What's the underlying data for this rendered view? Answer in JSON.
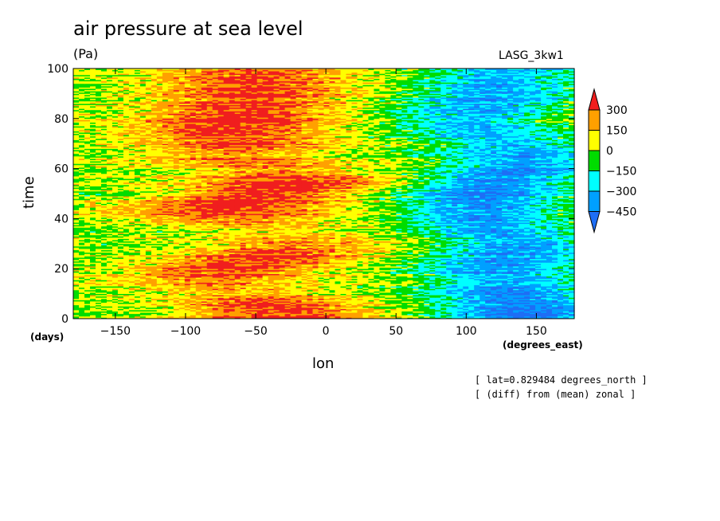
{
  "header": {
    "title": "air pressure at sea level",
    "units": "(Pa)",
    "model": "LASG_3kw1"
  },
  "axes": {
    "xlabel": "lon",
    "xunits": "(degrees_east)",
    "ylabel": "time",
    "yunits": "(days)"
  },
  "notes": {
    "line1": "[ lat=0.829484 degrees_north ]",
    "line2": "[ (diff) from (mean) zonal ]"
  },
  "chart_data": {
    "type": "heatmap",
    "title": "air pressure at sea level",
    "units": "(Pa)",
    "xlabel": "lon",
    "ylabel": "time",
    "xlim": [
      -180,
      177
    ],
    "ylim": [
      0,
      100
    ],
    "x_ticks": [
      -150,
      -100,
      -50,
      0,
      50,
      100,
      150
    ],
    "y_ticks": [
      0,
      20,
      40,
      60,
      80,
      100
    ],
    "colorbar": {
      "levels": [
        -450,
        -300,
        -150,
        0,
        150,
        300
      ],
      "colors": [
        "#1e6ef5",
        "#00a0ff",
        "#00ffff",
        "#00dc00",
        "#ffff00",
        "#ffa000",
        "#f01e1e"
      ]
    },
    "time_rows": [
      {
        "t": 0,
        "peak_lon": -30,
        "amp": 380,
        "trough_lon": 140,
        "trough_amp": -480
      },
      {
        "t": 5,
        "peak_lon": -35,
        "amp": 380,
        "trough_lon": 140,
        "trough_amp": -470
      },
      {
        "t": 10,
        "peak_lon": -60,
        "amp": 220,
        "trough_lon": 130,
        "trough_amp": -420
      },
      {
        "t": 15,
        "peak_lon": -80,
        "amp": 200,
        "trough_lon": 130,
        "trough_amp": -380
      },
      {
        "t": 20,
        "peak_lon": -70,
        "amp": 380,
        "trough_lon": 120,
        "trough_amp": -400
      },
      {
        "t": 25,
        "peak_lon": -40,
        "amp": 380,
        "trough_lon": 130,
        "trough_amp": -400
      },
      {
        "t": 30,
        "peak_lon": -20,
        "amp": 250,
        "trough_lon": 140,
        "trough_amp": -380
      },
      {
        "t": 35,
        "peak_lon": -30,
        "amp": 120,
        "trough_lon": 120,
        "trough_amp": -350
      },
      {
        "t": 40,
        "peak_lon": -70,
        "amp": 250,
        "trough_lon": 110,
        "trough_amp": -420
      },
      {
        "t": 45,
        "peak_lon": -70,
        "amp": 380,
        "trough_lon": 110,
        "trough_amp": -450
      },
      {
        "t": 50,
        "peak_lon": -40,
        "amp": 400,
        "trough_lon": 110,
        "trough_amp": -450
      },
      {
        "t": 55,
        "peak_lon": -20,
        "amp": 380,
        "trough_lon": 120,
        "trough_amp": -430
      },
      {
        "t": 60,
        "peak_lon": -40,
        "amp": 250,
        "trough_lon": 140,
        "trough_amp": -400
      },
      {
        "t": 65,
        "peak_lon": -70,
        "amp": 250,
        "trough_lon": 140,
        "trough_amp": -360
      },
      {
        "t": 70,
        "peak_lon": -60,
        "amp": 330,
        "trough_lon": 130,
        "trough_amp": -300
      },
      {
        "t": 75,
        "peak_lon": -70,
        "amp": 380,
        "trough_lon": 110,
        "trough_amp": -330
      },
      {
        "t": 80,
        "peak_lon": -60,
        "amp": 380,
        "trough_lon": 100,
        "trough_amp": -330
      },
      {
        "t": 85,
        "peak_lon": -60,
        "amp": 360,
        "trough_lon": 110,
        "trough_amp": -360
      },
      {
        "t": 90,
        "peak_lon": -50,
        "amp": 350,
        "trough_lon": 120,
        "trough_amp": -380
      },
      {
        "t": 95,
        "peak_lon": -50,
        "amp": 330,
        "trough_lon": 120,
        "trough_amp": -350
      },
      {
        "t": 100,
        "peak_lon": -50,
        "amp": 300,
        "trough_lon": 130,
        "trough_amp": -330
      }
    ]
  }
}
